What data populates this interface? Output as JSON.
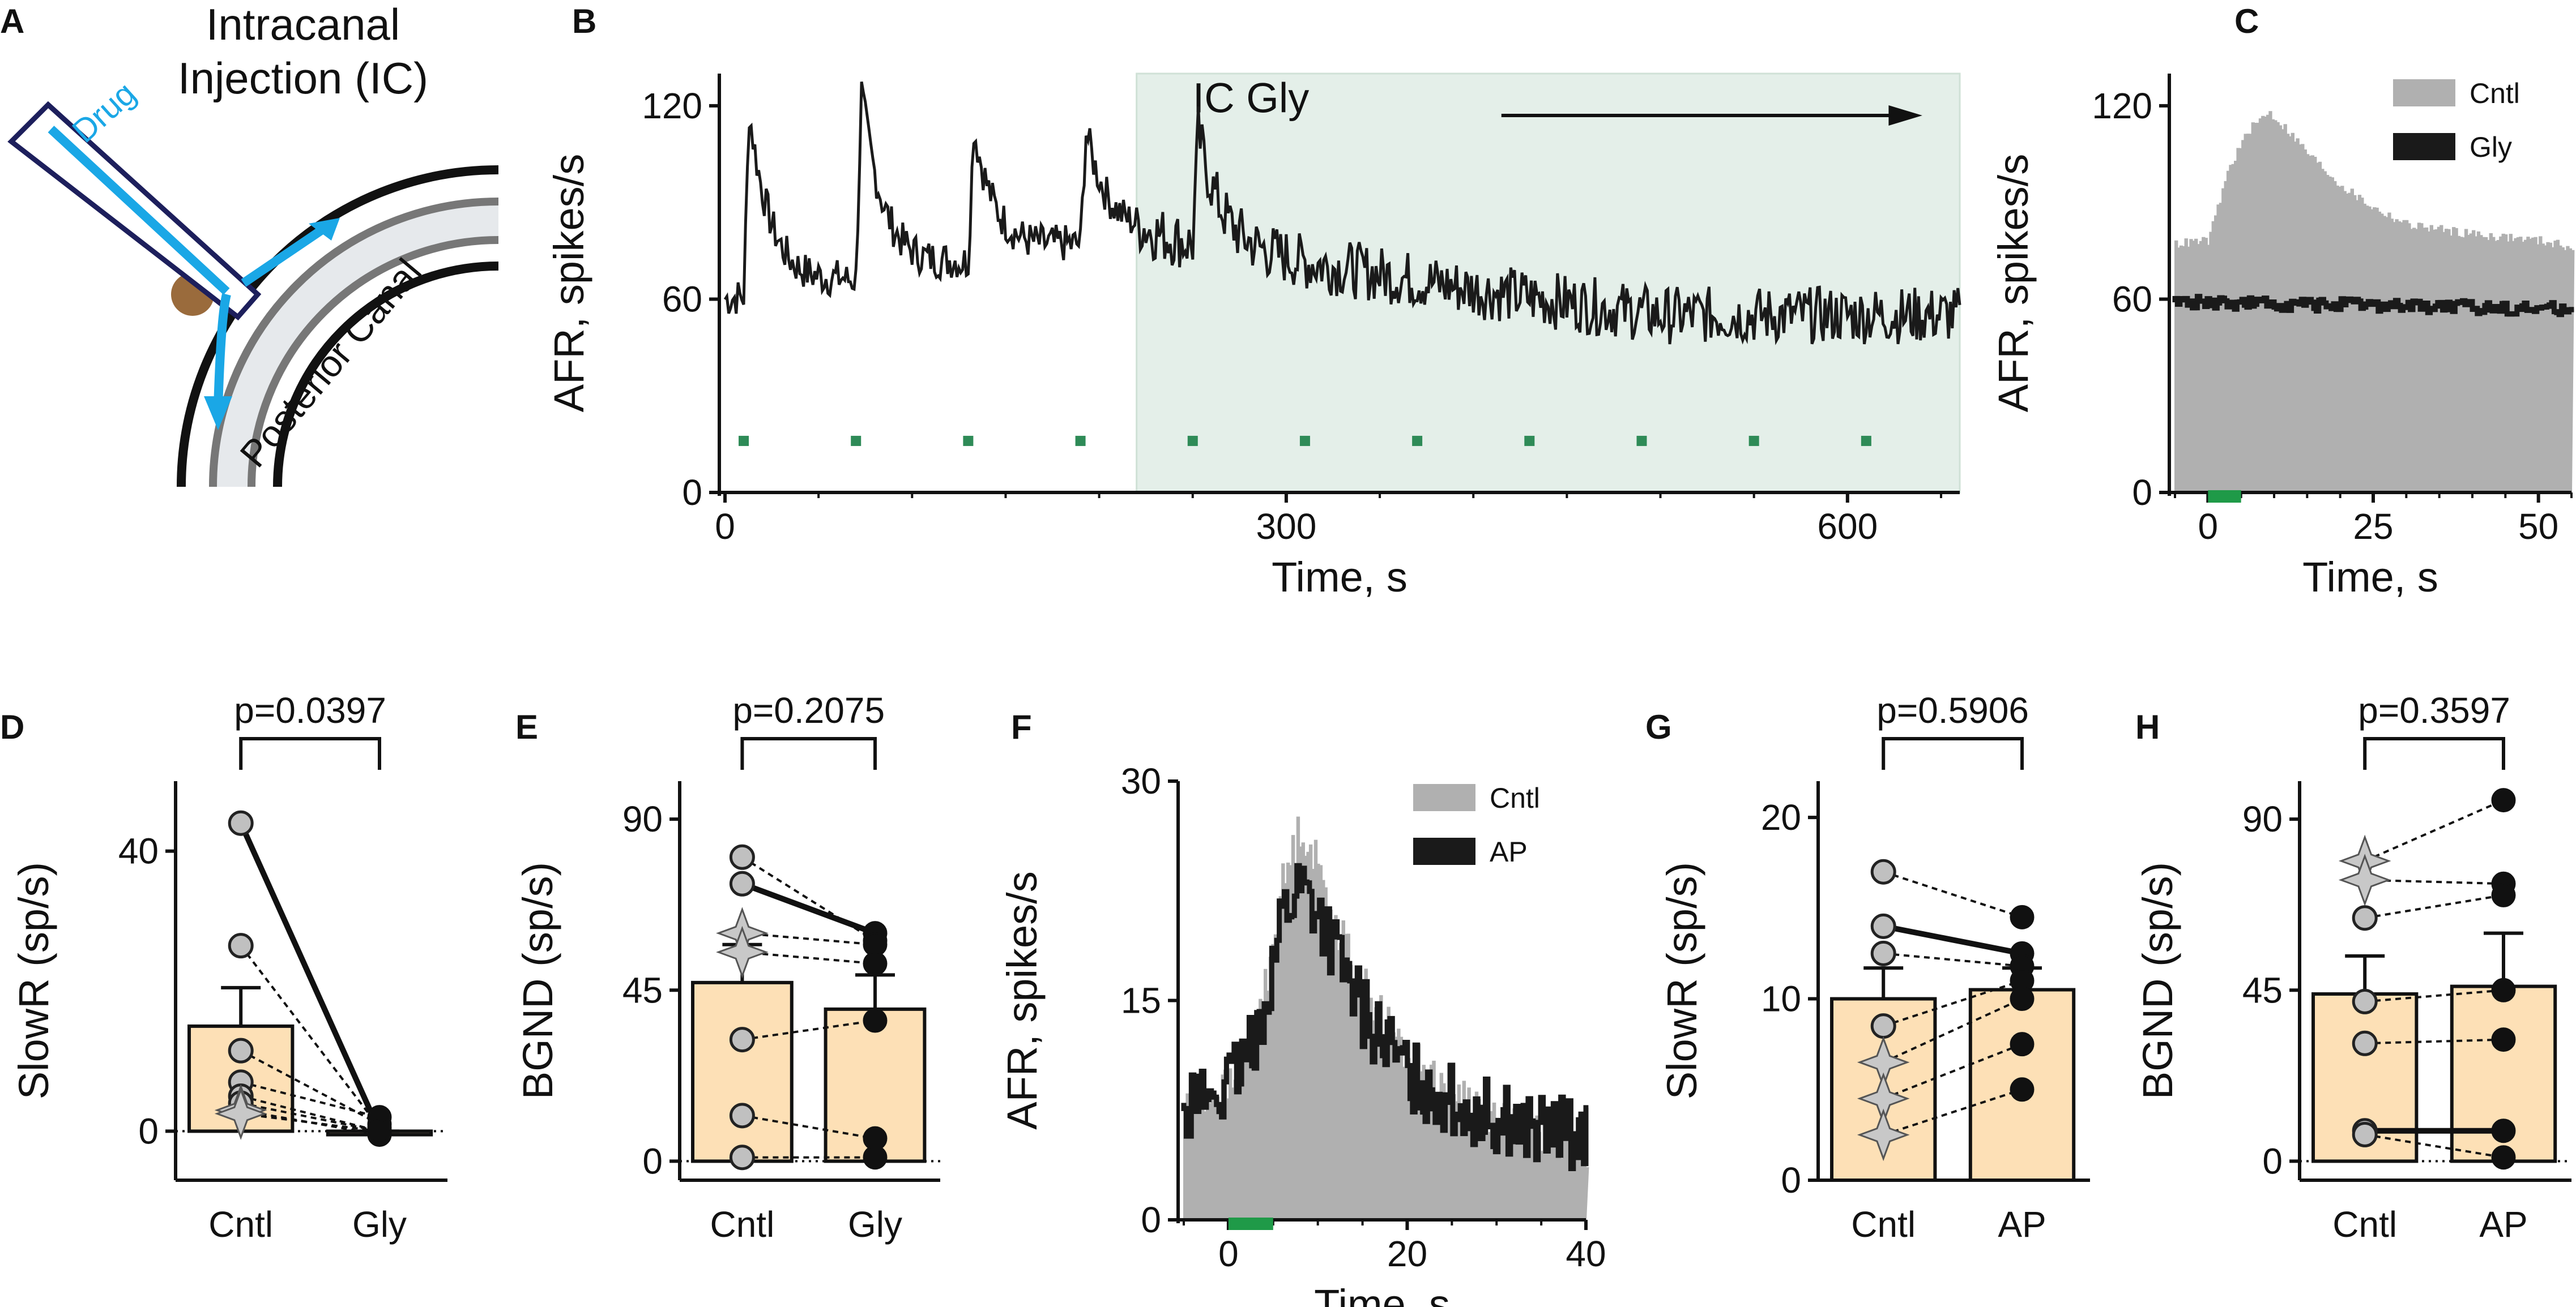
{
  "panel_a": {
    "letter": "A",
    "title_line1": "Intracanal",
    "title_line2": "Injection (IC)",
    "drug_label": "Drug",
    "canal_label": "Posterior Canal"
  },
  "chart_data": [
    {
      "panel": "B",
      "type": "line",
      "title": "",
      "xlabel": "Time, s",
      "ylabel": "AFR, spikes/s",
      "xlim": [
        0,
        660
      ],
      "ylim": [
        0,
        130
      ],
      "xticks": [
        0,
        300,
        600
      ],
      "yticks": [
        0,
        60,
        120
      ],
      "annotation": "IC Gly",
      "shaded_region": [
        220,
        660
      ],
      "stim_times": [
        10,
        70,
        130,
        190,
        250,
        310,
        370,
        430,
        490,
        550,
        610
      ],
      "peaks": [
        {
          "t": 10,
          "v": 118
        },
        {
          "t": 70,
          "v": 124
        },
        {
          "t": 130,
          "v": 113
        },
        {
          "t": 190,
          "v": 112
        },
        {
          "t": 250,
          "v": 112
        }
      ],
      "baseline": [
        {
          "t": 0,
          "v": 60
        },
        {
          "t": 220,
          "v": 80
        },
        {
          "t": 400,
          "v": 63
        },
        {
          "t": 500,
          "v": 55
        },
        {
          "t": 660,
          "v": 55
        }
      ]
    },
    {
      "panel": "C",
      "type": "area",
      "xlabel": "Time, s",
      "ylabel": "AFR, spikes/s",
      "xlim": [
        -5,
        55
      ],
      "ylim": [
        0,
        130
      ],
      "xticks": [
        0,
        25,
        50
      ],
      "yticks": [
        0,
        60,
        120
      ],
      "legend": [
        "Cntl",
        "Gly"
      ],
      "series": [
        {
          "name": "Cntl",
          "x": [
            -5,
            0,
            3,
            6,
            9,
            12,
            15,
            20,
            25,
            30,
            40,
            50,
            55
          ],
          "values": [
            77,
            78,
            100,
            112,
            118,
            112,
            105,
            95,
            88,
            83,
            80,
            78,
            76
          ]
        },
        {
          "name": "Gly",
          "x": [
            -5,
            55
          ],
          "values": [
            59,
            57
          ]
        }
      ],
      "stim_bar": [
        0,
        5
      ]
    },
    {
      "panel": "D",
      "type": "bar",
      "categories": [
        "Cntl",
        "Gly"
      ],
      "ylabel": "SlowR (sp/s)",
      "ylim": [
        -7,
        50
      ],
      "yticks": [
        0,
        40
      ],
      "p_value": "p=0.0397",
      "bar_means": [
        15,
        -0.5
      ],
      "bar_sem": [
        5.5,
        0.5
      ],
      "paired": [
        [
          44,
          0
        ],
        [
          26.5,
          0.5
        ],
        [
          11.5,
          1
        ],
        [
          7,
          2
        ],
        [
          5,
          0
        ],
        [
          4,
          0
        ],
        [
          3,
          -0.5
        ],
        [
          2.5,
          0
        ]
      ],
      "paired_markers": [
        "circle",
        "circle",
        "circle",
        "circle",
        "circle",
        "circle",
        "star",
        "star"
      ],
      "bold_pair": 0
    },
    {
      "panel": "E",
      "type": "bar",
      "categories": [
        "Cntl",
        "Gly"
      ],
      "ylabel": "BGND (sp/s)",
      "ylim": [
        -5,
        100
      ],
      "yticks": [
        0,
        45,
        90
      ],
      "p_value": "p=0.2075",
      "bar_means": [
        47,
        40
      ],
      "bar_sem": [
        10,
        9
      ],
      "paired": [
        [
          80,
          58
        ],
        [
          73,
          60
        ],
        [
          60,
          57
        ],
        [
          55,
          52
        ],
        [
          32,
          37
        ],
        [
          12,
          6
        ],
        [
          1,
          1
        ]
      ],
      "paired_markers": [
        "circle",
        "circle",
        "star",
        "star",
        "circle",
        "circle",
        "circle"
      ],
      "bold_pair": 1
    },
    {
      "panel": "F",
      "type": "area",
      "xlabel": "Time, s",
      "ylabel": "AFR, spikes/s",
      "xlim": [
        -5,
        40
      ],
      "ylim": [
        0,
        30
      ],
      "xticks": [
        0,
        20,
        40
      ],
      "yticks": [
        0,
        15,
        30
      ],
      "legend": [
        "Cntl",
        "AP"
      ],
      "series": [
        {
          "name": "Cntl",
          "x": [
            -5,
            0,
            2,
            4,
            6,
            8,
            10,
            12,
            15,
            20,
            25,
            30,
            35,
            40
          ],
          "values": [
            8,
            9,
            11,
            16,
            23,
            27,
            24,
            20,
            16,
            11,
            9,
            7,
            6,
            5
          ]
        },
        {
          "name": "AP",
          "x": [
            -5,
            0,
            2,
            4,
            6,
            8,
            10,
            12,
            15,
            20,
            25,
            30,
            35,
            40
          ],
          "values": [
            8,
            9,
            11,
            15,
            21,
            23,
            21,
            18,
            14,
            10,
            8,
            7,
            6,
            6
          ]
        }
      ],
      "stim_bar": [
        0,
        5
      ]
    },
    {
      "panel": "G",
      "type": "bar",
      "categories": [
        "Cntl",
        "AP"
      ],
      "ylabel": "SlowR (sp/s)",
      "ylim": [
        0,
        22
      ],
      "yticks": [
        0,
        10,
        20
      ],
      "p_value": "p=0.5906",
      "bar_means": [
        10,
        10.5
      ],
      "bar_sem": [
        1.7,
        1.2
      ],
      "paired": [
        [
          17,
          14.5
        ],
        [
          14,
          12.5
        ],
        [
          12.5,
          11.8
        ],
        [
          8.5,
          11
        ],
        [
          6.5,
          10
        ],
        [
          4.5,
          7.5
        ],
        [
          2.5,
          5
        ]
      ],
      "paired_markers": [
        "circle",
        "circle",
        "circle",
        "circle",
        "star",
        "star",
        "star"
      ],
      "bold_pair": 1
    },
    {
      "panel": "H",
      "type": "bar",
      "categories": [
        "Cntl",
        "AP"
      ],
      "ylabel": "BGND (sp/s)",
      "ylim": [
        -5,
        100
      ],
      "yticks": [
        0,
        45,
        90
      ],
      "p_value": "p=0.3597",
      "bar_means": [
        44,
        46
      ],
      "bar_sem": [
        10,
        14
      ],
      "paired": [
        [
          79,
          95
        ],
        [
          74,
          73
        ],
        [
          64,
          70
        ],
        [
          42,
          45
        ],
        [
          31,
          32
        ],
        [
          8,
          8
        ],
        [
          7,
          1
        ]
      ],
      "paired_markers": [
        "star",
        "star",
        "circle",
        "circle",
        "circle",
        "circle",
        "circle"
      ],
      "bold_pair": 5
    }
  ]
}
